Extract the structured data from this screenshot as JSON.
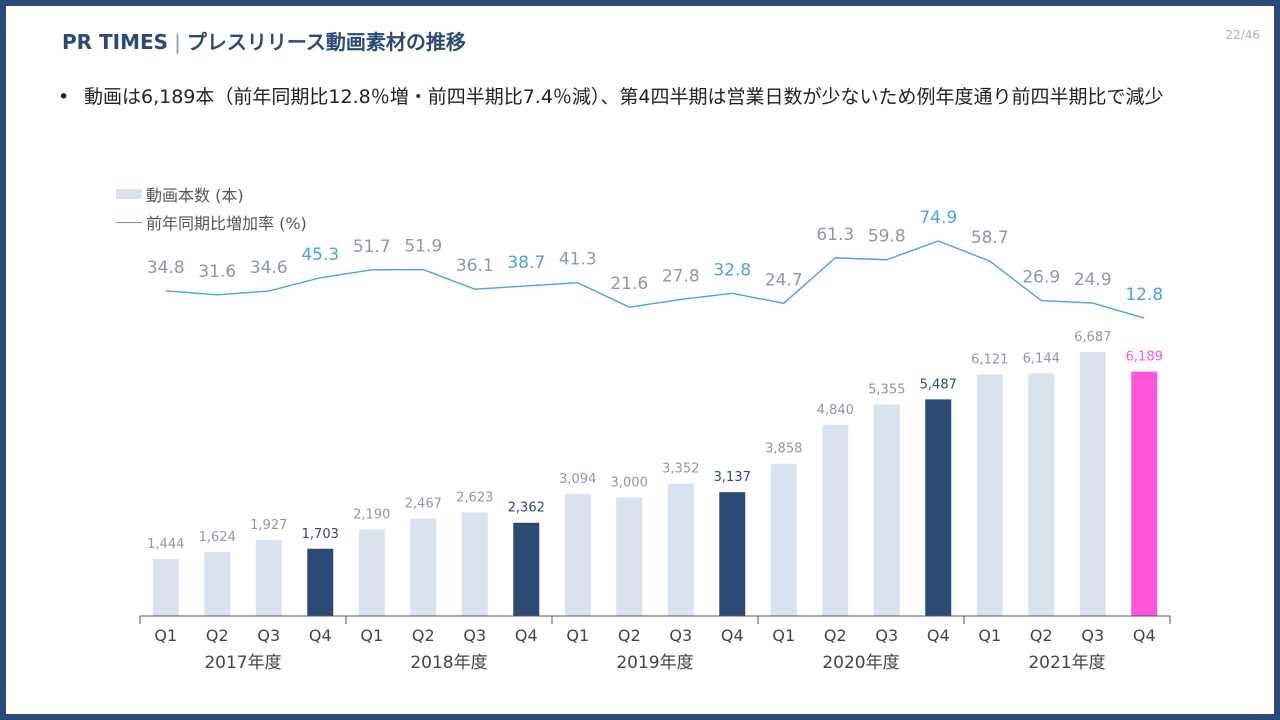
{
  "header": {
    "brand": "PR TIMES",
    "title": "プレスリリース動画素材の推移"
  },
  "page_number": "22/46",
  "bullet": {
    "marker": "•",
    "text": "動画は6,189本（前年同期比12.8％増・前四半期比7.4％減）、第4四半期は営業日数が少ないため例年度通り前四半期比で減少"
  },
  "legend": {
    "bars": "動画本数 (本)",
    "line": "前年同期比増加率 (%)"
  },
  "colors": {
    "frame": "#2b4b76",
    "bar_default": "#dae2f0",
    "bar_q4": "#2b4b76",
    "bar_highlight": "#ff55d9",
    "line": "#4ba3e0",
    "rate_highlight": "#4ba3e0",
    "rate_default": "#8d98a5"
  },
  "chart_data": {
    "type": "bar",
    "categories": [
      "Q1",
      "Q2",
      "Q3",
      "Q4",
      "Q1",
      "Q2",
      "Q3",
      "Q4",
      "Q1",
      "Q2",
      "Q3",
      "Q4",
      "Q1",
      "Q2",
      "Q3",
      "Q4",
      "Q1",
      "Q2",
      "Q3",
      "Q4"
    ],
    "groups": [
      "2017年度",
      "2018年度",
      "2019年度",
      "2020年度",
      "2021年度"
    ],
    "series": [
      {
        "name": "動画本数 (本)",
        "type": "bar",
        "values": [
          1444,
          1624,
          1927,
          1703,
          2190,
          2467,
          2623,
          2362,
          3094,
          3000,
          3352,
          3137,
          3858,
          4840,
          5355,
          5487,
          6121,
          6144,
          6687,
          6189
        ],
        "labels": [
          "1,444",
          "1,624",
          "1,927",
          "1,703",
          "2,190",
          "2,467",
          "2,623",
          "2,362",
          "3,094",
          "3,000",
          "3,352",
          "3,137",
          "3,858",
          "4,840",
          "5,355",
          "5,487",
          "6,121",
          "6,144",
          "6,687",
          "6,189"
        ]
      },
      {
        "name": "前年同期比増加率 (%)",
        "type": "line",
        "values": [
          34.8,
          31.6,
          34.6,
          45.3,
          51.7,
          51.9,
          36.1,
          38.7,
          41.3,
          21.6,
          27.8,
          32.8,
          24.7,
          61.3,
          59.8,
          74.9,
          58.7,
          26.9,
          24.9,
          12.8
        ],
        "labels": [
          "34.8",
          "31.6",
          "34.6",
          "45.3",
          "51.7",
          "51.9",
          "36.1",
          "38.7",
          "41.3",
          "21.6",
          "27.8",
          "32.8",
          "24.7",
          "61.3",
          "59.8",
          "74.9",
          "58.7",
          "26.9",
          "24.9",
          "12.8"
        ]
      }
    ],
    "highlight_index": 19,
    "xlabel": "",
    "ylabel": "",
    "ylim": [
      0,
      7000
    ]
  }
}
